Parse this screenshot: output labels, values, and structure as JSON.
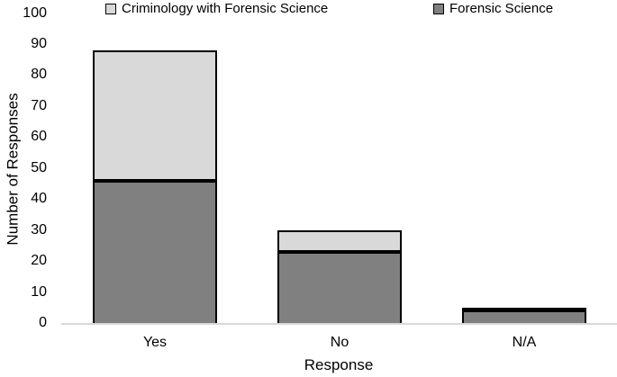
{
  "chart_data": {
    "type": "bar",
    "stacked": true,
    "title": "",
    "xlabel": "Response",
    "ylabel": "Number of Responses",
    "categories": [
      "Yes",
      "No",
      "N/A"
    ],
    "series": [
      {
        "name": "Forensic Science",
        "color": "#808080",
        "values": [
          46,
          23,
          4
        ]
      },
      {
        "name": "Criminology with Forensic Science",
        "color": "#d9d9d9",
        "values": [
          42,
          7,
          1
        ]
      }
    ],
    "totals": [
      88,
      30,
      5
    ],
    "ylim": [
      0,
      100
    ],
    "yticks": [
      0,
      10,
      20,
      30,
      40,
      50,
      60,
      70,
      80,
      90,
      100
    ],
    "grid": false,
    "legend_position": "top",
    "bar_border_color": "#000000",
    "axis_line_color": "#d9d9d9"
  },
  "legend": {
    "items": [
      {
        "label": "Criminology with Forensic Science",
        "color": "#d9d9d9"
      },
      {
        "label": "Forensic Science",
        "color": "#808080"
      }
    ]
  }
}
